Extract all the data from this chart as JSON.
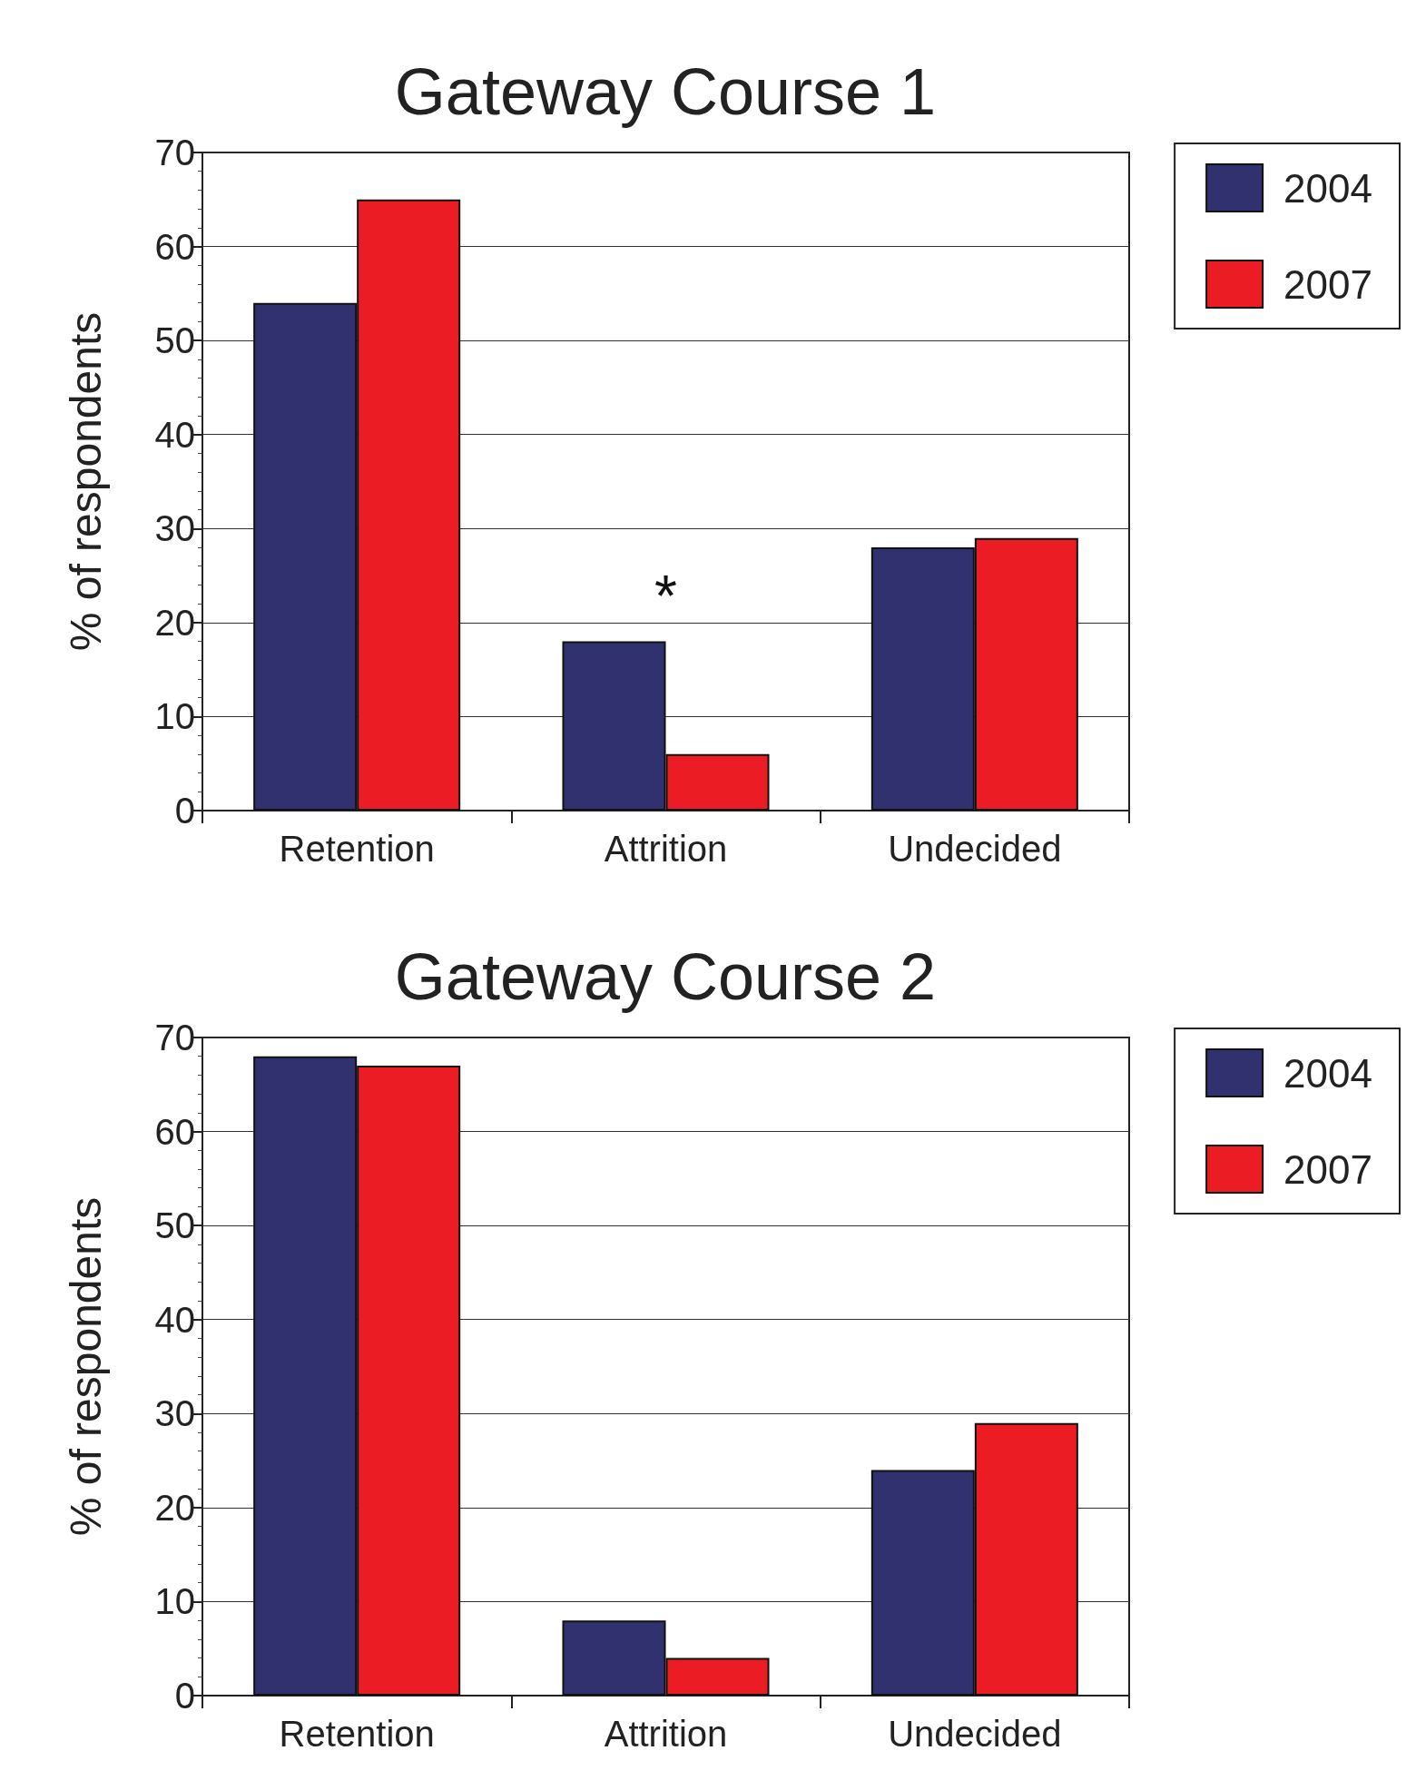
{
  "chart_data": [
    {
      "type": "bar",
      "title": "Gateway Course 1",
      "ylabel": "% of respondents",
      "categories": [
        "Retention",
        "Attrition",
        "Undecided"
      ],
      "series": [
        {
          "name": "2004",
          "color": "#31316f",
          "values": [
            54,
            18,
            28
          ]
        },
        {
          "name": "2007",
          "color": "#ec1c24",
          "values": [
            65,
            6,
            29
          ]
        }
      ],
      "ylim": [
        0,
        70
      ],
      "yticks": [
        0,
        10,
        20,
        30,
        40,
        50,
        60,
        70
      ],
      "grid": "y",
      "legend": "top right",
      "annotations": [
        "*"
      ]
    },
    {
      "type": "bar",
      "title": "Gateway Course 2",
      "ylabel": "% of respondents",
      "categories": [
        "Retention",
        "Attrition",
        "Undecided"
      ],
      "series": [
        {
          "name": "2004",
          "color": "#31316f",
          "values": [
            68,
            8,
            24
          ]
        },
        {
          "name": "2007",
          "color": "#ec1c24",
          "values": [
            67,
            4,
            29
          ]
        }
      ],
      "ylim": [
        0,
        70
      ],
      "yticks": [
        0,
        10,
        20,
        30,
        40,
        50,
        60,
        70
      ],
      "grid": "y",
      "legend": "top right"
    }
  ]
}
